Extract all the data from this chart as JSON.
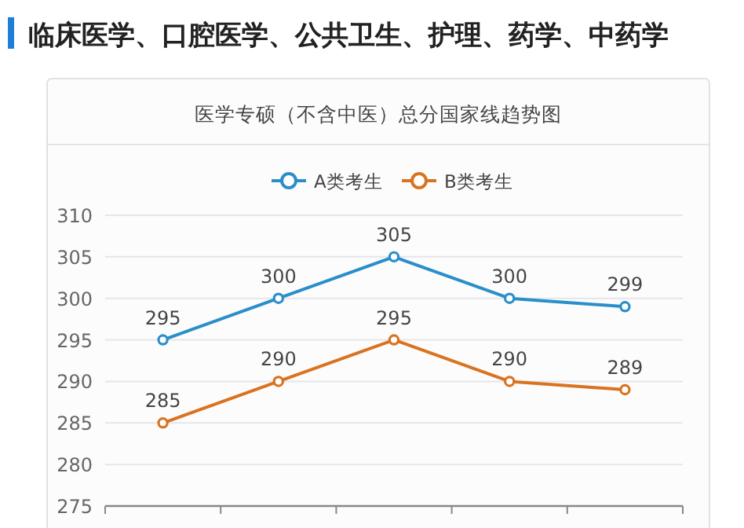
{
  "chart_data": {
    "type": "line",
    "title": "临床医学、口腔医学、公共卫生、护理、药学、中药学",
    "subtitle": "医学专硕（不含中医）总分国家线趋势图",
    "categories": [
      null,
      null,
      null,
      null,
      null
    ],
    "series": [
      {
        "name": "A类考生",
        "color": "#2a8fc9",
        "values": [
          295,
          300,
          305,
          300,
          299
        ]
      },
      {
        "name": "B类考生",
        "color": "#d9731f",
        "values": [
          285,
          290,
          295,
          290,
          289
        ]
      }
    ],
    "ylim": [
      275,
      310
    ],
    "yticks": [
      275,
      280,
      285,
      290,
      295,
      300,
      305,
      310
    ],
    "grid": "y",
    "legend": "top",
    "marker": "circle",
    "line_style": "solid",
    "data_labels": true,
    "tick_labels": "y"
  }
}
